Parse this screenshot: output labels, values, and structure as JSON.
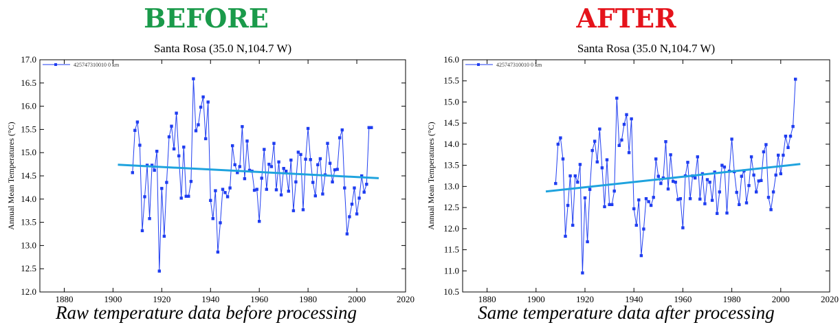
{
  "panels": [
    {
      "heading": "BEFORE",
      "heading_color": "#1a9a4a",
      "caption": "Raw temperature data before processing",
      "series_color": "#1f3df0",
      "trend_color": "#1fa3de"
    },
    {
      "heading": "AFTER",
      "heading_color": "#e5131b",
      "caption": "Same temperature data after processing",
      "series_color": "#1f3df0",
      "trend_color": "#1fa3de"
    }
  ],
  "chart_data": [
    {
      "type": "line",
      "title": "Santa Rosa (35.0 N,104.7 W)",
      "xlabel": "",
      "ylabel": "Annual Mean Temperatures (°C)",
      "legend": {
        "entry": "425747310010 0 km",
        "placement": "top-left"
      },
      "xlim": [
        1870,
        2020
      ],
      "ylim": [
        12.0,
        17.0
      ],
      "xticks": [
        1880,
        1900,
        1920,
        1940,
        1960,
        1980,
        2000,
        2020
      ],
      "yticks": [
        "12.0",
        "12.5",
        "13.0",
        "13.5",
        "14.0",
        "14.5",
        "15.0",
        "15.5",
        "16.0",
        "16.5",
        "17.0"
      ],
      "grid": false,
      "trend": {
        "x": [
          1902,
          2009
        ],
        "y": [
          14.74,
          14.45
        ]
      },
      "series": [
        {
          "x": [
            1908,
            1909,
            1910,
            1911,
            1912,
            1913,
            1914,
            1915,
            1916,
            1917,
            1918,
            1919,
            1920,
            1921,
            1922,
            1923,
            1924,
            1925,
            1926,
            1927,
            1928,
            1929,
            1930,
            1931,
            1932,
            1933,
            1934,
            1935,
            1936,
            1937,
            1938,
            1939,
            1940,
            1941,
            1942,
            1943,
            1944,
            1945,
            1946,
            1947,
            1948,
            1949,
            1950,
            1951,
            1952,
            1953,
            1954,
            1955,
            1956,
            1957,
            1958,
            1959,
            1960,
            1961,
            1962,
            1963,
            1964,
            1965,
            1966,
            1967,
            1968,
            1969,
            1970,
            1971,
            1972,
            1973,
            1974,
            1975,
            1976,
            1977,
            1978,
            1979,
            1980,
            1981,
            1982,
            1983,
            1984,
            1985,
            1986,
            1987,
            1988,
            1989,
            1990,
            1991,
            1992,
            1993,
            1994,
            1995,
            1996,
            1997,
            1998,
            1999,
            2000,
            2001,
            2002,
            2003,
            2004,
            2005,
            2006
          ],
          "y": [
            14.57,
            15.48,
            15.66,
            15.16,
            13.32,
            14.05,
            14.73,
            13.58,
            14.73,
            14.62,
            15.03,
            12.45,
            14.23,
            13.2,
            14.36,
            15.34,
            15.57,
            15.08,
            15.85,
            14.93,
            14.02,
            15.12,
            14.06,
            14.06,
            14.38,
            16.59,
            15.47,
            15.6,
            15.98,
            16.2,
            15.3,
            16.09,
            13.97,
            13.58,
            14.18,
            12.86,
            13.49,
            14.21,
            14.14,
            14.05,
            14.24,
            15.15,
            14.74,
            14.57,
            14.7,
            15.56,
            14.44,
            15.25,
            14.62,
            14.6,
            14.19,
            14.21,
            13.52,
            14.45,
            15.07,
            14.21,
            14.75,
            14.7,
            15.2,
            14.2,
            14.8,
            14.09,
            14.66,
            14.6,
            14.17,
            14.84,
            13.75,
            14.37,
            15.01,
            14.96,
            13.77,
            14.86,
            15.52,
            14.85,
            14.36,
            14.07,
            14.74,
            14.87,
            14.11,
            14.52,
            15.2,
            14.77,
            14.37,
            14.63,
            14.64,
            15.32,
            15.49,
            14.24,
            13.25,
            13.62,
            13.89,
            14.24,
            13.68,
            14.02,
            14.5,
            14.15,
            14.32,
            15.54,
            15.54
          ]
        }
      ]
    },
    {
      "type": "line",
      "title": "Santa Rosa (35.0 N,104.7 W)",
      "xlabel": "",
      "ylabel": "Annual Mean Temperatures (°C)",
      "legend": {
        "entry": "425747310010 0 km",
        "placement": "top-left"
      },
      "xlim": [
        1870,
        2020
      ],
      "ylim": [
        10.5,
        16.0
      ],
      "xticks": [
        1880,
        1900,
        1920,
        1940,
        1960,
        1980,
        2000,
        2020
      ],
      "yticks": [
        "10.5",
        "11.0",
        "11.5",
        "12.0",
        "12.5",
        "13.0",
        "13.5",
        "14.0",
        "14.5",
        "15.0",
        "15.5",
        "16.0"
      ],
      "grid": false,
      "trend": {
        "x": [
          1904,
          2008
        ],
        "y": [
          12.88,
          13.53
        ]
      },
      "series": [
        {
          "x": [
            1908,
            1909,
            1910,
            1911,
            1912,
            1913,
            1914,
            1915,
            1916,
            1917,
            1918,
            1919,
            1920,
            1921,
            1922,
            1923,
            1924,
            1925,
            1926,
            1927,
            1928,
            1929,
            1930,
            1931,
            1932,
            1933,
            1934,
            1935,
            1936,
            1937,
            1938,
            1939,
            1940,
            1941,
            1942,
            1943,
            1944,
            1945,
            1946,
            1947,
            1948,
            1949,
            1950,
            1951,
            1952,
            1953,
            1954,
            1955,
            1956,
            1957,
            1958,
            1959,
            1960,
            1961,
            1962,
            1963,
            1964,
            1965,
            1966,
            1967,
            1968,
            1969,
            1970,
            1971,
            1972,
            1973,
            1974,
            1975,
            1976,
            1977,
            1978,
            1979,
            1980,
            1981,
            1982,
            1983,
            1984,
            1985,
            1986,
            1987,
            1988,
            1989,
            1990,
            1991,
            1992,
            1993,
            1994,
            1995,
            1996,
            1997,
            1998,
            1999,
            2000,
            2001,
            2002,
            2003,
            2004,
            2005,
            2006
          ],
          "y": [
            13.07,
            14.0,
            14.15,
            13.65,
            11.82,
            12.55,
            13.25,
            12.08,
            13.25,
            13.1,
            13.52,
            10.95,
            12.73,
            11.69,
            12.93,
            13.85,
            14.07,
            13.58,
            14.36,
            13.44,
            12.52,
            13.63,
            12.57,
            12.57,
            12.89,
            15.09,
            13.97,
            14.1,
            14.47,
            14.7,
            13.8,
            14.6,
            12.47,
            12.08,
            12.68,
            11.36,
            11.99,
            12.71,
            12.64,
            12.55,
            12.74,
            13.65,
            13.24,
            13.07,
            13.2,
            14.06,
            12.94,
            13.75,
            13.12,
            13.1,
            12.69,
            12.71,
            12.02,
            13.25,
            13.57,
            12.71,
            13.25,
            13.2,
            13.7,
            12.7,
            13.3,
            12.59,
            13.16,
            13.1,
            12.67,
            13.34,
            12.36,
            12.87,
            13.5,
            13.46,
            12.37,
            13.36,
            14.12,
            13.35,
            12.86,
            12.57,
            13.24,
            13.37,
            12.61,
            13.02,
            13.7,
            13.27,
            12.87,
            13.13,
            13.14,
            13.82,
            13.99,
            12.74,
            12.45,
            12.87,
            13.27,
            13.74,
            13.3,
            13.74,
            14.19,
            13.92,
            14.19,
            14.42,
            15.54
          ]
        }
      ]
    }
  ]
}
